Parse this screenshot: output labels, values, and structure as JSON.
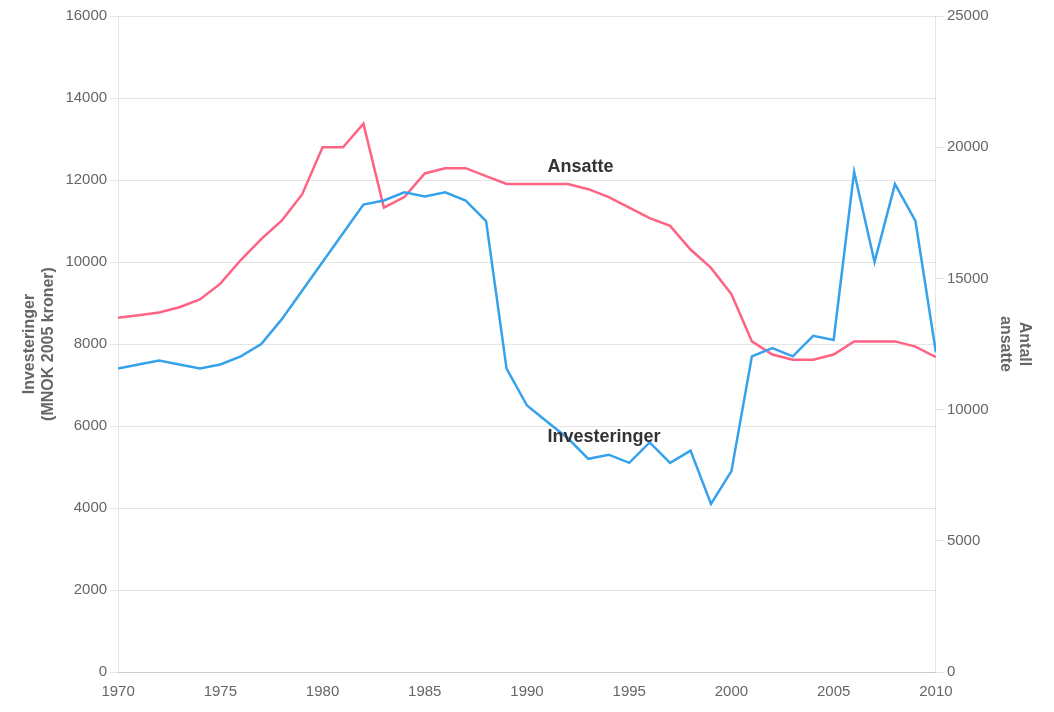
{
  "chart_data": {
    "type": "line",
    "ylabel": [
      "Investeringer",
      "(MNOK 2005 kroner)"
    ],
    "y2label": [
      "Antall",
      "ansatte"
    ],
    "x": [
      1970,
      1971,
      1972,
      1973,
      1974,
      1975,
      1976,
      1977,
      1978,
      1979,
      1980,
      1981,
      1982,
      1983,
      1984,
      1985,
      1986,
      1987,
      1988,
      1989,
      1990,
      1991,
      1992,
      1993,
      1994,
      1995,
      1996,
      1997,
      1998,
      1999,
      2000,
      2001,
      2002,
      2003,
      2004,
      2005,
      2006,
      2007,
      2008,
      2009,
      2010
    ],
    "series": [
      {
        "name": "Investeringer",
        "axis": "y",
        "values": [
          7400,
          7500,
          7600,
          7500,
          7400,
          7500,
          7700,
          8000,
          8600,
          9300,
          10000,
          10700,
          11400,
          11500,
          11700,
          11600,
          11700,
          11500,
          11000,
          7400,
          6500,
          6100,
          5700,
          5200,
          5300,
          5100,
          5600,
          5100,
          5400,
          4100,
          4900,
          7700,
          7900,
          7700,
          8200,
          8100,
          12200,
          10000,
          11900,
          11000,
          7800
        ]
      },
      {
        "name": "Ansatte",
        "axis": "y2",
        "values": [
          13500,
          13600,
          13700,
          13900,
          14200,
          14800,
          15700,
          16500,
          17200,
          18200,
          20000,
          20000,
          20900,
          17700,
          18100,
          19000,
          19200,
          19200,
          18900,
          18600,
          18600,
          18600,
          18600,
          18400,
          18100,
          17700,
          17300,
          17000,
          16100,
          15400,
          14400,
          12600,
          12100,
          11900,
          11900,
          12100,
          12600,
          12600,
          12600,
          12400,
          12000
        ]
      }
    ],
    "xlim": [
      1970,
      2010
    ],
    "xticks": [
      1970,
      1975,
      1980,
      1985,
      1990,
      1995,
      2000,
      2005,
      2010
    ],
    "ylim": [
      0,
      16000
    ],
    "yticks": [
      0,
      2000,
      4000,
      6000,
      8000,
      10000,
      12000,
      14000,
      16000
    ],
    "y2lim": [
      0,
      25000
    ],
    "y2ticks": [
      0,
      5000,
      10000,
      15000,
      20000,
      25000
    ],
    "grid": true,
    "annotations": [
      {
        "text": "Ansatte",
        "x": 1991,
        "y": 12200
      },
      {
        "text": "Investeringer",
        "x": 1991,
        "y": 5600
      }
    ]
  }
}
